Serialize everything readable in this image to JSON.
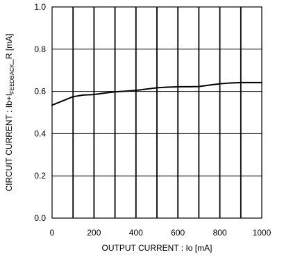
{
  "chart_data": {
    "type": "line",
    "xlabel": "OUTPUT CURRENT : Io [mA]",
    "ylabel_main": "CIRCUIT CURRENT : Ib+I",
    "ylabel_sub": "FEEDBACK",
    "ylabel_end": "_R [mA]",
    "xlim": [
      0,
      1000
    ],
    "ylim": [
      0.0,
      1.0
    ],
    "x_ticks": [
      0,
      200,
      400,
      600,
      800,
      1000
    ],
    "x_tick_labels": [
      "0",
      "200",
      "400",
      "600",
      "800",
      "1000"
    ],
    "y_ticks": [
      0.0,
      0.2,
      0.4,
      0.6,
      0.8,
      1.0
    ],
    "y_tick_labels": [
      "0.0",
      "0.2",
      "0.4",
      "0.6",
      "0.8",
      "1.0"
    ],
    "grid": true,
    "series": [
      {
        "x": [
          0,
          50,
          100,
          150,
          200,
          250,
          300,
          350,
          400,
          450,
          500,
          550,
          600,
          650,
          700,
          750,
          800,
          850,
          900,
          950,
          1000
        ],
        "y": [
          0.535,
          0.555,
          0.575,
          0.583,
          0.585,
          0.592,
          0.598,
          0.601,
          0.605,
          0.611,
          0.617,
          0.62,
          0.622,
          0.622,
          0.623,
          0.63,
          0.636,
          0.64,
          0.642,
          0.642,
          0.642
        ]
      }
    ],
    "colors": {
      "line": "#000000",
      "grid": "#000000",
      "frame": "#000000"
    }
  }
}
